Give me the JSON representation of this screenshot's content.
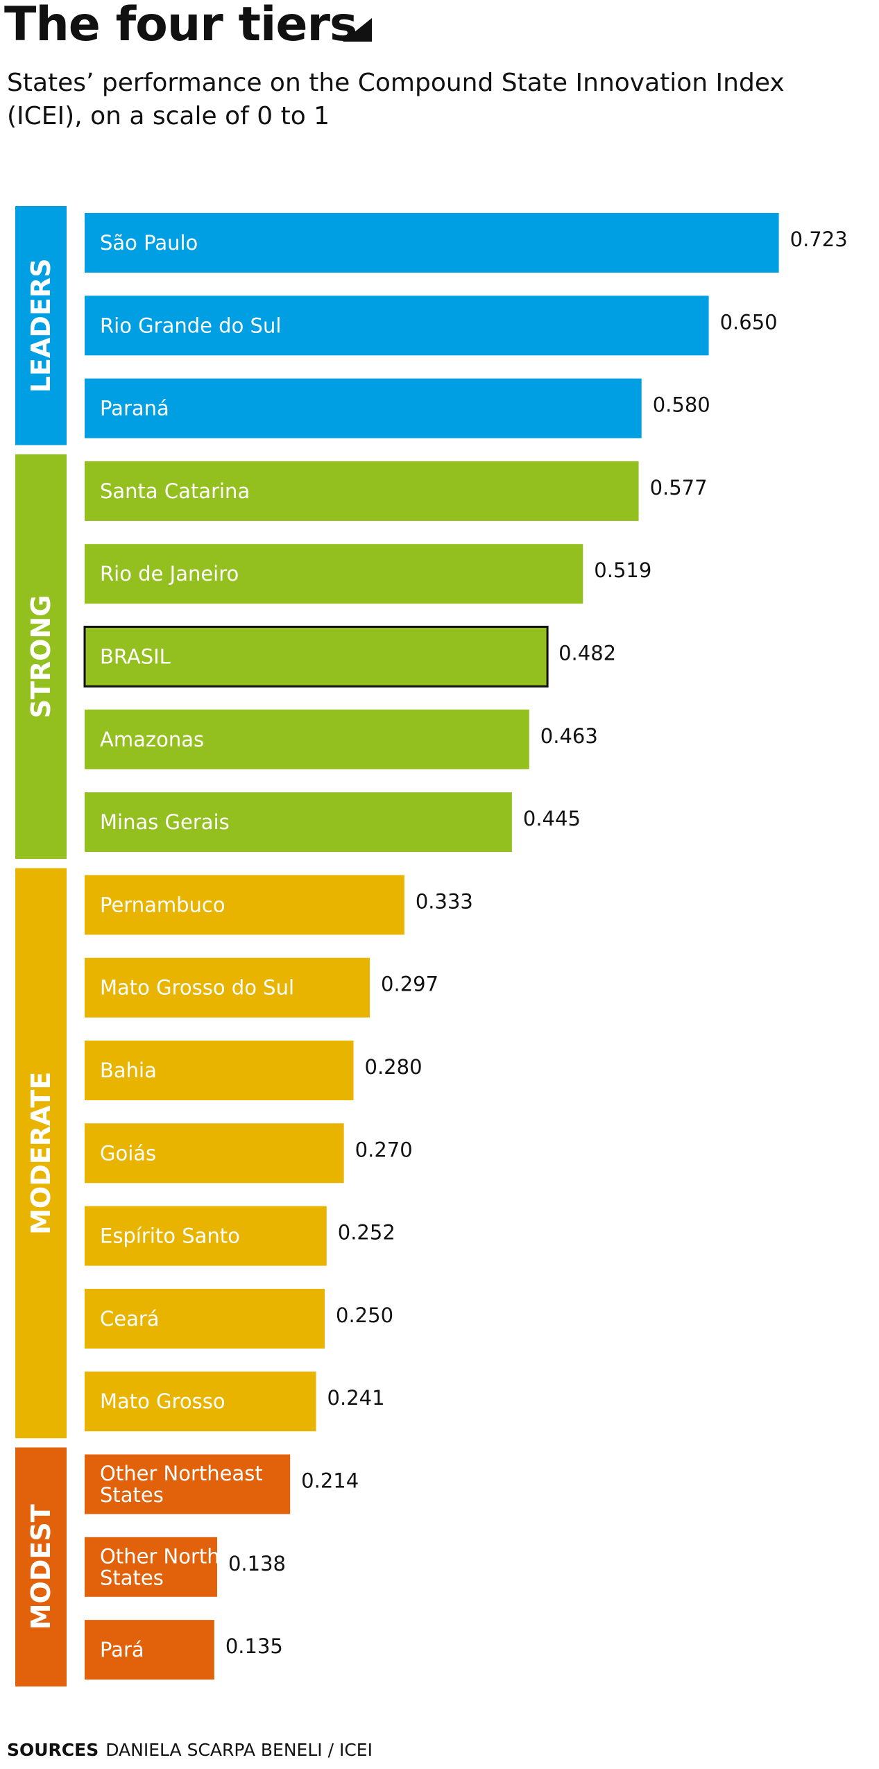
{
  "title": "The four tiers",
  "subtitle": "States’ performance on the Compound State Innovation Index (ICEI), on a scale of 0 to 1",
  "sources": {
    "label": "SOURCES",
    "text": "DANIELA SCARPA BENELI / ICEI"
  },
  "chart_data": {
    "type": "bar",
    "orientation": "horizontal",
    "title": "The four tiers",
    "xlim": [
      0,
      1
    ],
    "grid": false,
    "tiers": [
      {
        "name": "LEADERS",
        "color": "#009fe3",
        "items": [
          {
            "label": "São Paulo",
            "value": 0.723
          },
          {
            "label": "Rio Grande do Sul",
            "value": 0.65
          },
          {
            "label": "Paraná",
            "value": 0.58
          }
        ]
      },
      {
        "name": "STRONG",
        "color": "#93c01f",
        "items": [
          {
            "label": "Santa Catarina",
            "value": 0.577
          },
          {
            "label": "Rio de Janeiro",
            "value": 0.519
          },
          {
            "label": "BRASIL",
            "value": 0.482,
            "highlight": true
          },
          {
            "label": "Amazonas",
            "value": 0.463
          },
          {
            "label": "Minas Gerais",
            "value": 0.445
          }
        ]
      },
      {
        "name": "MODERATE",
        "color": "#e8b400",
        "items": [
          {
            "label": "Pernambuco",
            "value": 0.333
          },
          {
            "label": "Mato Grosso do Sul",
            "value": 0.297
          },
          {
            "label": "Bahia",
            "value": 0.28
          },
          {
            "label": "Goiás",
            "value": 0.27
          },
          {
            "label": "Espírito Santo",
            "value": 0.252
          },
          {
            "label": "Ceará",
            "value": 0.25
          },
          {
            "label": "Mato Grosso",
            "value": 0.241
          }
        ]
      },
      {
        "name": "MODEST",
        "color": "#e2620c",
        "items": [
          {
            "label": [
              "Other Northeast",
              "States"
            ],
            "value": 0.214
          },
          {
            "label": [
              "Other North",
              "States"
            ],
            "value": 0.138
          },
          {
            "label": "Pará",
            "value": 0.135
          }
        ]
      }
    ]
  }
}
